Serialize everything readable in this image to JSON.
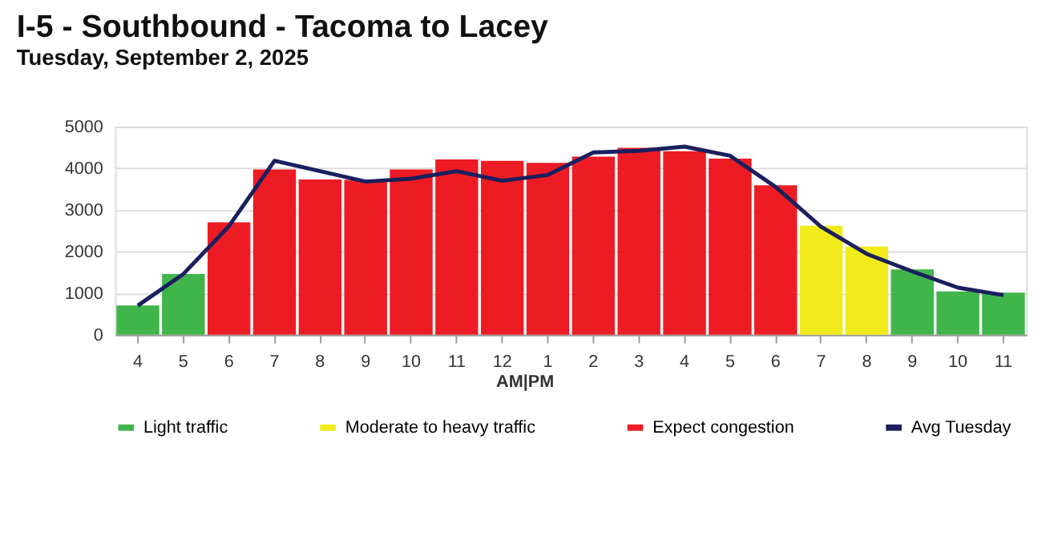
{
  "chart_data": {
    "type": "bar",
    "title": "I-5 - Southbound - Tacoma to Lacey",
    "subtitle": "Tuesday, September 2, 2025",
    "categories": [
      "4",
      "5",
      "6",
      "7",
      "8",
      "9",
      "10",
      "11",
      "12",
      "1",
      "2",
      "3",
      "4",
      "5",
      "6",
      "7",
      "8",
      "9",
      "10",
      "11"
    ],
    "series": [
      {
        "name": "Light traffic",
        "color": "#3fb54a",
        "values": [
          700,
          1460,
          null,
          null,
          null,
          null,
          null,
          null,
          null,
          null,
          null,
          null,
          null,
          null,
          null,
          null,
          null,
          1570,
          1040,
          1010
        ]
      },
      {
        "name": "Moderate to heavy traffic",
        "color": "#f2eb1c",
        "values": [
          null,
          null,
          null,
          null,
          null,
          null,
          null,
          null,
          null,
          null,
          null,
          null,
          null,
          null,
          null,
          2620,
          2120,
          null,
          null,
          null
        ]
      },
      {
        "name": "Expect congestion",
        "color": "#ed1c24",
        "values": [
          null,
          null,
          2700,
          3970,
          3730,
          3720,
          3970,
          4210,
          4180,
          4130,
          4280,
          4490,
          4410,
          4230,
          3590,
          null,
          null,
          null,
          null,
          null
        ]
      },
      {
        "name": "Avg Tuesday",
        "type": "line",
        "color": "#1a1f5e",
        "values": [
          700,
          1460,
          2610,
          4180,
          3930,
          3680,
          3750,
          3930,
          3700,
          3840,
          4380,
          4420,
          4520,
          4300,
          3550,
          2590,
          1940,
          1520,
          1130,
          950
        ]
      }
    ],
    "ylim": [
      0,
      5000
    ],
    "yticks": [
      0,
      1000,
      2000,
      3000,
      4000,
      5000
    ],
    "grid": "y",
    "legend": "bottom",
    "annotations": [
      "AM|PM"
    ]
  }
}
